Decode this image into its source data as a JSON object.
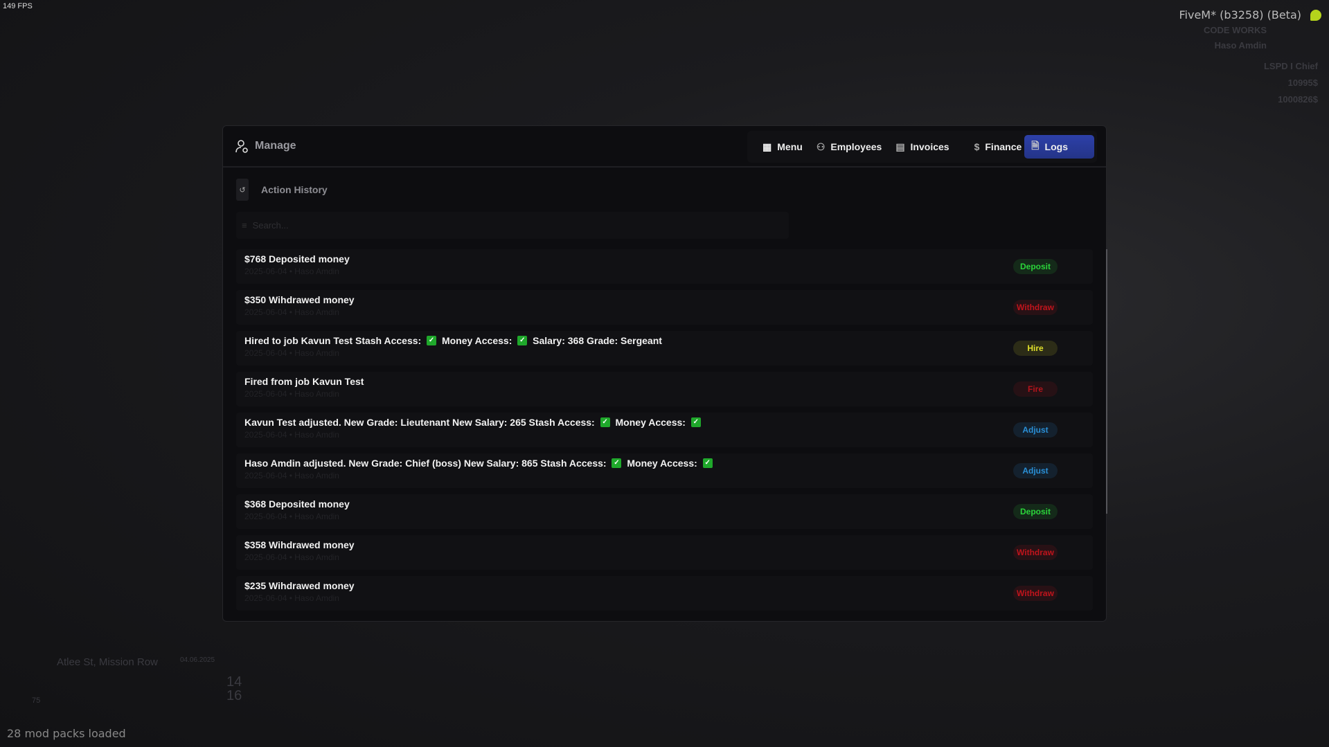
{
  "overlay": {
    "fps": "149 FPS",
    "client": "FiveM* (b3258) (Beta)",
    "mods": "28 mod packs loaded"
  },
  "hud": {
    "brand": "CODE WORKS",
    "player": "Haso Amdin",
    "job": "LSPD I Chief",
    "bank": "10995$",
    "cash": "1000826$",
    "location": "Atlee St, Mission Row",
    "date": "04.06.2025",
    "health": "75",
    "time_h": "14",
    "time_m": "16"
  },
  "header": {
    "title": "Manage",
    "icon": "user-cog-icon"
  },
  "nav": [
    {
      "label": "Menu",
      "icon": "grid-icon",
      "active": false
    },
    {
      "label": "Employees",
      "icon": "users-icon",
      "active": false
    },
    {
      "label": "Invoices",
      "icon": "receipt-icon",
      "active": false
    },
    {
      "label": "Finance",
      "icon": "dollar-icon",
      "active": false
    },
    {
      "label": "Logs",
      "icon": "file-icon",
      "active": true
    }
  ],
  "section": {
    "title": "Action History",
    "icon": "history-icon"
  },
  "search": {
    "placeholder": "Search...",
    "value": ""
  },
  "colors": {
    "Deposit": "#2bd43a",
    "Withdraw": "#c0141c",
    "Hire": "#e0e02a",
    "Fire": "#b3141c",
    "Adjust": "#2a8fd6",
    "accent": "#2d40a8"
  },
  "logs": [
    {
      "title": "$768 Deposited money",
      "meta": "2025-06-04 • Haso Amdin",
      "type": "Deposit"
    },
    {
      "title": "$350 Wihdrawed money",
      "meta": "2025-06-04 • Haso Amdin",
      "type": "Withdraw"
    },
    {
      "title": "Hired to job Kavun Test Stash Access: ✓ Money Access: ✓ Salary: 368 Grade: Sergeant",
      "meta": "2025-06-04 • Haso Amdin",
      "type": "Hire"
    },
    {
      "title": "Fired from job Kavun Test",
      "meta": "2025-06-04 • Haso Amdin",
      "type": "Fire"
    },
    {
      "title": "Kavun Test adjusted. New Grade: Lieutenant New Salary: 265 Stash Access: ✓ Money Access: ✓",
      "meta": "2025-06-04 • Haso Amdin",
      "type": "Adjust"
    },
    {
      "title": "Haso Amdin adjusted. New Grade: Chief (boss) New Salary: 865 Stash Access: ✓ Money Access: ✓",
      "meta": "2025-06-04 • Haso Amdin",
      "type": "Adjust"
    },
    {
      "title": "$368 Deposited money",
      "meta": "2025-06-04 • Haso Amdin",
      "type": "Deposit"
    },
    {
      "title": "$358 Wihdrawed money",
      "meta": "2025-06-04 • Haso Amdin",
      "type": "Withdraw"
    },
    {
      "title": "$235 Wihdrawed money",
      "meta": "2025-06-04 • Haso Amdin",
      "type": "Withdraw"
    }
  ]
}
